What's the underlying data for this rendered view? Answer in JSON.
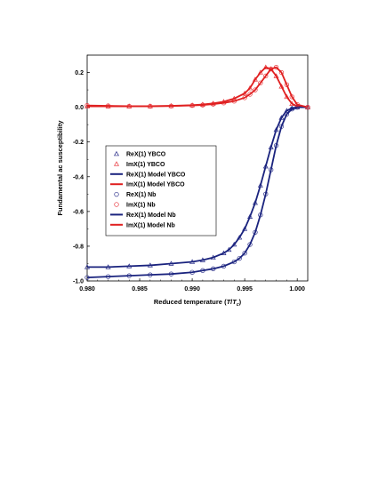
{
  "chart_data": {
    "type": "scatter",
    "xlabel": "Reduced temperature (T/Tc)",
    "xlabel_parts": {
      "prefix": "Reduced temperature (",
      "t": "T",
      "slash": "/",
      "tc": "T",
      "sub": "c",
      "suffix": ")"
    },
    "ylabel": "Fundamental ac susceptibility",
    "xlim": [
      0.98,
      1.001
    ],
    "ylim": [
      -1.0,
      0.3
    ],
    "xticks": [
      0.98,
      0.985,
      0.99,
      0.995,
      1.0
    ],
    "xtick_labels": [
      "0.980",
      "0.985",
      "0.990",
      "0.995",
      "1.000"
    ],
    "yticks": [
      -1.0,
      -0.8,
      -0.6,
      -0.4,
      -0.2,
      0.0,
      0.2
    ],
    "ytick_labels": [
      "-1.0",
      "-0.8",
      "-0.6",
      "-0.4",
      "-0.2",
      "0.0",
      "0.2"
    ],
    "grid": false,
    "legend_position": "center-left",
    "series": [
      {
        "name": "ReX(1) YBCO",
        "kind": "markers",
        "marker": "triangle",
        "color": "#2b2f8a",
        "x": [
          0.98,
          0.982,
          0.984,
          0.986,
          0.988,
          0.99,
          0.991,
          0.992,
          0.993,
          0.9935,
          0.994,
          0.9945,
          0.995,
          0.9955,
          0.996,
          0.9965,
          0.997,
          0.9975,
          0.998,
          0.9985,
          0.999,
          0.9995,
          1.0,
          1.001
        ],
        "y": [
          -0.92,
          -0.92,
          -0.915,
          -0.91,
          -0.9,
          -0.89,
          -0.88,
          -0.865,
          -0.84,
          -0.82,
          -0.79,
          -0.75,
          -0.7,
          -0.63,
          -0.55,
          -0.45,
          -0.34,
          -0.23,
          -0.13,
          -0.06,
          -0.02,
          -0.005,
          0.0,
          0.0
        ]
      },
      {
        "name": "ImX(1) YBCO",
        "kind": "markers",
        "marker": "triangle",
        "color": "#e8343a",
        "x": [
          0.98,
          0.982,
          0.984,
          0.986,
          0.988,
          0.99,
          0.991,
          0.992,
          0.993,
          0.994,
          0.995,
          0.9955,
          0.996,
          0.9965,
          0.997,
          0.9975,
          0.998,
          0.9985,
          0.999,
          0.9995,
          1.0,
          1.001
        ],
        "y": [
          0.005,
          0.005,
          0.005,
          0.006,
          0.008,
          0.012,
          0.016,
          0.022,
          0.032,
          0.05,
          0.08,
          0.11,
          0.16,
          0.2,
          0.23,
          0.22,
          0.18,
          0.12,
          0.06,
          0.02,
          0.005,
          0.0
        ]
      },
      {
        "name": "ReX(1) Model YBCO",
        "kind": "line",
        "color": "#1a237e",
        "x": [
          0.98,
          0.982,
          0.984,
          0.986,
          0.988,
          0.99,
          0.991,
          0.992,
          0.993,
          0.9935,
          0.994,
          0.9945,
          0.995,
          0.9955,
          0.996,
          0.9965,
          0.997,
          0.9975,
          0.998,
          0.9985,
          0.999,
          0.9995,
          1.0,
          1.001
        ],
        "y": [
          -0.92,
          -0.92,
          -0.915,
          -0.91,
          -0.9,
          -0.89,
          -0.88,
          -0.865,
          -0.84,
          -0.82,
          -0.79,
          -0.75,
          -0.7,
          -0.63,
          -0.55,
          -0.45,
          -0.34,
          -0.23,
          -0.13,
          -0.06,
          -0.02,
          -0.005,
          0.0,
          0.0
        ]
      },
      {
        "name": "ImX(1) Model YBCO",
        "kind": "line",
        "color": "#e02020",
        "x": [
          0.98,
          0.982,
          0.984,
          0.986,
          0.988,
          0.99,
          0.991,
          0.992,
          0.993,
          0.994,
          0.995,
          0.9955,
          0.996,
          0.9965,
          0.997,
          0.9975,
          0.998,
          0.9985,
          0.999,
          0.9995,
          1.0,
          1.001
        ],
        "y": [
          0.005,
          0.005,
          0.005,
          0.006,
          0.008,
          0.012,
          0.016,
          0.022,
          0.032,
          0.05,
          0.08,
          0.11,
          0.16,
          0.2,
          0.23,
          0.22,
          0.18,
          0.12,
          0.06,
          0.02,
          0.005,
          0.0
        ]
      },
      {
        "name": "ReX(1) Nb",
        "kind": "markers",
        "marker": "circle",
        "color": "#2b2f8a",
        "x": [
          0.98,
          0.982,
          0.984,
          0.986,
          0.988,
          0.99,
          0.991,
          0.992,
          0.993,
          0.994,
          0.9945,
          0.995,
          0.9955,
          0.996,
          0.9965,
          0.997,
          0.9975,
          0.998,
          0.9985,
          0.999,
          0.9995,
          1.0,
          1.001
        ],
        "y": [
          -0.98,
          -0.975,
          -0.97,
          -0.965,
          -0.96,
          -0.95,
          -0.94,
          -0.93,
          -0.915,
          -0.89,
          -0.87,
          -0.84,
          -0.79,
          -0.72,
          -0.62,
          -0.5,
          -0.36,
          -0.22,
          -0.11,
          -0.04,
          -0.01,
          0.0,
          0.0
        ]
      },
      {
        "name": "ImX(1) Nb",
        "kind": "markers",
        "marker": "circle",
        "color": "#e8343a",
        "x": [
          0.98,
          0.982,
          0.984,
          0.986,
          0.988,
          0.99,
          0.991,
          0.992,
          0.993,
          0.994,
          0.995,
          0.9955,
          0.996,
          0.9965,
          0.997,
          0.9975,
          0.998,
          0.9985,
          0.999,
          0.9995,
          1.0,
          1.001
        ],
        "y": [
          0.01,
          0.008,
          0.006,
          0.006,
          0.007,
          0.01,
          0.013,
          0.018,
          0.025,
          0.035,
          0.055,
          0.075,
          0.1,
          0.14,
          0.18,
          0.22,
          0.23,
          0.2,
          0.13,
          0.06,
          0.015,
          0.0
        ]
      },
      {
        "name": "ReX(1) Model Nb",
        "kind": "line",
        "color": "#1a237e",
        "x": [
          0.98,
          0.982,
          0.984,
          0.986,
          0.988,
          0.99,
          0.991,
          0.992,
          0.993,
          0.994,
          0.9945,
          0.995,
          0.9955,
          0.996,
          0.9965,
          0.997,
          0.9975,
          0.998,
          0.9985,
          0.999,
          0.9995,
          1.0,
          1.001
        ],
        "y": [
          -0.98,
          -0.975,
          -0.97,
          -0.965,
          -0.96,
          -0.95,
          -0.94,
          -0.93,
          -0.915,
          -0.89,
          -0.87,
          -0.84,
          -0.79,
          -0.72,
          -0.62,
          -0.5,
          -0.36,
          -0.22,
          -0.11,
          -0.04,
          -0.01,
          0.0,
          0.0
        ]
      },
      {
        "name": "ImX(1) Model Nb",
        "kind": "line",
        "color": "#e02020",
        "x": [
          0.98,
          0.982,
          0.984,
          0.986,
          0.988,
          0.99,
          0.991,
          0.992,
          0.993,
          0.994,
          0.995,
          0.9955,
          0.996,
          0.9965,
          0.997,
          0.9975,
          0.998,
          0.9985,
          0.999,
          0.9995,
          1.0,
          1.001
        ],
        "y": [
          0.01,
          0.008,
          0.006,
          0.006,
          0.007,
          0.01,
          0.013,
          0.018,
          0.025,
          0.035,
          0.055,
          0.075,
          0.1,
          0.14,
          0.18,
          0.22,
          0.23,
          0.2,
          0.13,
          0.06,
          0.015,
          0.0
        ]
      }
    ]
  }
}
